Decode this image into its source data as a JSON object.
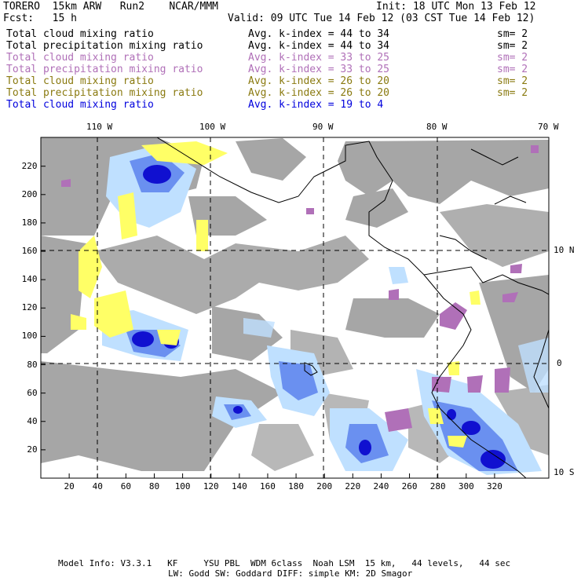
{
  "header": {
    "model": "TORERO",
    "resolution": "15km ARW",
    "run": "Run2",
    "org": "NCAR/MMM",
    "init": "Init: 18 UTC Mon 13 Feb 12",
    "fcst_label": "Fcst:",
    "fcst_value": "15 h",
    "valid": "Valid: 09 UTC Tue 14 Feb 12 (03 CST Tue 14 Feb 12)"
  },
  "fields": [
    {
      "name": "Total cloud mixing ratio",
      "kindex": "Avg. k-index = 44 to 34",
      "sm": "sm= 2",
      "color": "#000000"
    },
    {
      "name": "Total precipitation mixing ratio",
      "kindex": "Avg. k-index = 44 to 34",
      "sm": "sm= 2",
      "color": "#000000"
    },
    {
      "name": "Total cloud mixing ratio",
      "kindex": "Avg. k-index = 33 to 25",
      "sm": "sm= 2",
      "color": "#b070b8"
    },
    {
      "name": "Total precipitation mixing ratio",
      "kindex": "Avg. k-index = 33 to 25",
      "sm": "sm= 2",
      "color": "#b070b8"
    },
    {
      "name": "Total cloud mixing ratio",
      "kindex": "Avg. k-index = 26 to 20",
      "sm": "sm= 2",
      "color": "#8a7a10"
    },
    {
      "name": "Total precipitation mixing ratio",
      "kindex": "Avg. k-index = 26 to 20",
      "sm": "sm= 2",
      "color": "#8a7a10"
    },
    {
      "name": "Total cloud mixing ratio",
      "kindex": "Avg. k-index = 19 to 4",
      "sm": "",
      "color": "#0000dd"
    }
  ],
  "map": {
    "top_lon_labels": [
      "110 W",
      "100 W",
      "90 W",
      "80 W",
      "70 W"
    ],
    "right_lat_labels": [
      "10 N",
      "0",
      "10 S"
    ],
    "x_ticks": [
      "20",
      "40",
      "60",
      "80",
      "100",
      "120",
      "140",
      "160",
      "180",
      "200",
      "220",
      "240",
      "260",
      "280",
      "300",
      "320"
    ],
    "y_ticks": [
      "220",
      "200",
      "180",
      "160",
      "140",
      "120",
      "100",
      "80",
      "60",
      "40",
      "20"
    ],
    "colors": {
      "ocean": "#ffffff",
      "cloud_gray": "#a6a6a6",
      "k_low": "#b070b8",
      "k_mid": "#ffff66",
      "k_light_blue": "#bfe0ff",
      "k_blue": "#6a90f0",
      "k_dark_blue": "#1010d0",
      "coast": "#000000"
    }
  },
  "footer": {
    "line1": "Model Info: V3.3.1   KF     YSU PBL  WDM 6class  Noah LSM  15 km,   44 levels,   44 sec",
    "line2": "LW: Godd SW: Goddard DIFF: simple KM: 2D Smagor"
  }
}
